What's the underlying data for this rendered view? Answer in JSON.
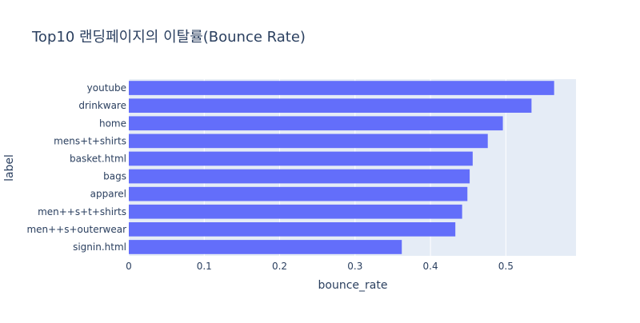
{
  "chart_data": {
    "type": "bar",
    "orientation": "horizontal",
    "title": "Top10 랜딩페이지의 이탈률(Bounce Rate)",
    "xlabel": "bounce_rate",
    "ylabel": "label",
    "categories": [
      "youtube",
      "drinkware",
      "home",
      "mens+t+shirts",
      "basket.html",
      "bags",
      "apparel",
      "men++s+t+shirts",
      "men++s+outerwear",
      "signin.html"
    ],
    "values": [
      0.564,
      0.534,
      0.496,
      0.476,
      0.456,
      0.452,
      0.449,
      0.442,
      0.433,
      0.362
    ],
    "color": "#636efa",
    "xlim": [
      0,
      0.593
    ],
    "xticks": [
      0,
      0.1,
      0.2,
      0.3,
      0.4,
      0.5
    ],
    "grid": true
  }
}
